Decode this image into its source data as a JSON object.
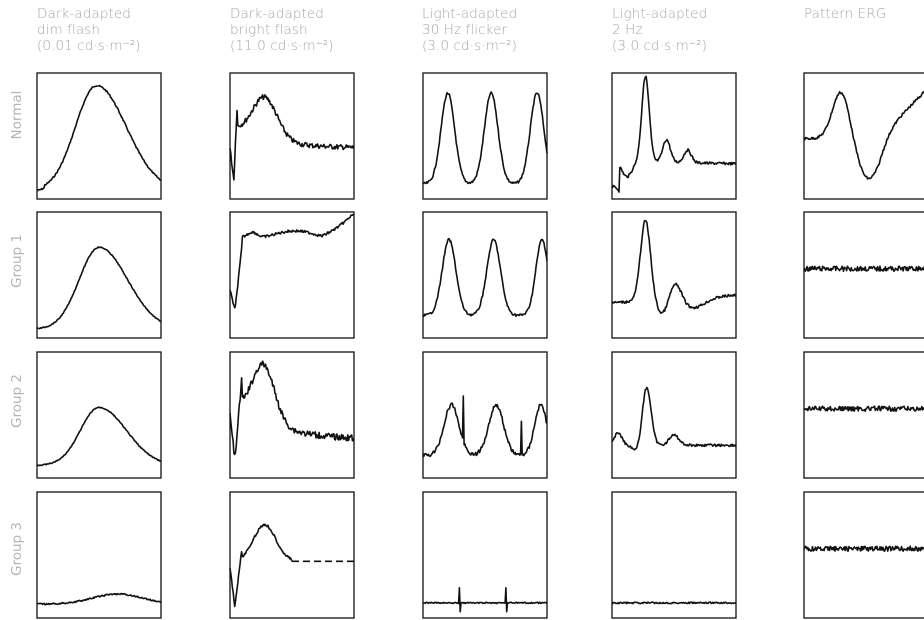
{
  "columns": [
    {
      "line1": "Dark-adapted",
      "line2": "dim flash",
      "line3": "(0.01 cd·s·m⁻²)"
    },
    {
      "line1": "Dark-adapted",
      "line2": "bright flash",
      "line3": "(11.0 cd·s·m⁻²)"
    },
    {
      "line1": "Light-adapted",
      "line2": "30 Hz flicker",
      "line3": "(3.0 cd·s·m⁻²)"
    },
    {
      "line1": "Light-adapted",
      "line2": "2 Hz",
      "line3": "(3.0 cd·s·m⁻²)"
    },
    {
      "line1": "Pattern ERG",
      "line2": "",
      "line3": ""
    }
  ],
  "rows": [
    "Normal",
    "Group 1",
    "Group 2",
    "Group 3"
  ],
  "colors": {
    "trace": "#111111",
    "frame": "#111111",
    "label": "#a8a8a8"
  },
  "chart_data": {
    "type": "line",
    "title": "",
    "note": "Grid of ERG waveforms; traces are stylized shapes (no axes/values printed).",
    "waveforms": [
      [
        "dim-large",
        "bright-normal",
        "flicker-normal",
        "twohz-normal",
        "pattern-normal"
      ],
      [
        "dim-medium",
        "bright-group1",
        "flicker-group1",
        "twohz-group1",
        "pattern-flat"
      ],
      [
        "dim-small",
        "bright-group2",
        "flicker-group2",
        "twohz-group2",
        "pattern-flat"
      ],
      [
        "dim-flat",
        "bright-group3",
        "flicker-flat",
        "twohz-flat",
        "pattern-flat"
      ]
    ]
  }
}
